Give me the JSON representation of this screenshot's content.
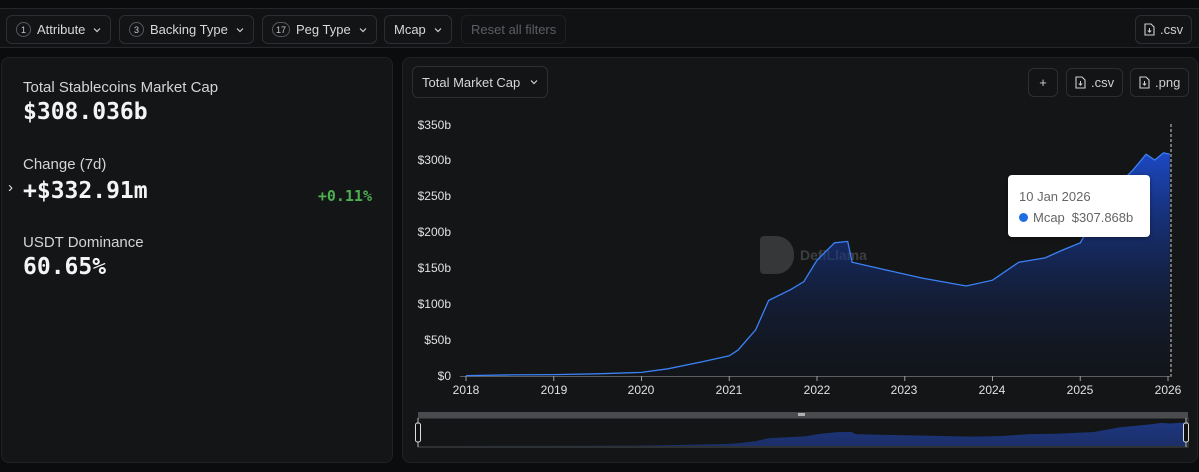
{
  "filters": {
    "items": [
      {
        "badge": "1",
        "label": "Attribute"
      },
      {
        "badge": "3",
        "label": "Backing Type"
      },
      {
        "badge": "17",
        "label": "Peg Type"
      },
      {
        "badge": "",
        "label": "Mcap"
      }
    ],
    "reset_label": "Reset all filters",
    "csv_label": ".csv"
  },
  "stats": {
    "total_label": "Total Stablecoins Market Cap",
    "total_value": "$308.036b",
    "change_label": "Change (7d)",
    "change_value": "+$332.91m",
    "change_pct": "+0.11%",
    "dominance_label": "USDT Dominance",
    "dominance_value": "60.65%",
    "expand_icon": "›"
  },
  "chart_toolbar": {
    "metric_select": "Total Market Cap",
    "add_label": "+",
    "csv_label": ".csv",
    "png_label": ".png"
  },
  "tooltip": {
    "date": "10 Jan 2026",
    "series": "Mcap",
    "value": "$307.868b"
  },
  "watermark": "DefiLlama",
  "colors": {
    "line": "#3b82f6",
    "fill_top": "#1d4ed8",
    "positive": "#4caf50",
    "tooltip_dot": "#1f6fe0"
  },
  "chart_data": {
    "type": "area",
    "title": "Total Market Cap",
    "xlabel": "",
    "ylabel": "",
    "ylim": [
      0,
      350
    ],
    "y_unit": "$b",
    "y_ticks": [
      "$0",
      "$50b",
      "$100b",
      "$150b",
      "$200b",
      "$250b",
      "$300b",
      "$350b"
    ],
    "x_ticks": [
      "2018",
      "2019",
      "2020",
      "2021",
      "2022",
      "2023",
      "2024",
      "2025",
      "2026"
    ],
    "grid": false,
    "legend": "none",
    "series": [
      {
        "name": "Mcap",
        "x": [
          2018.0,
          2018.5,
          2019.0,
          2019.5,
          2020.0,
          2020.3,
          2020.7,
          2021.0,
          2021.1,
          2021.3,
          2021.45,
          2021.7,
          2021.85,
          2022.0,
          2022.2,
          2022.35,
          2022.4,
          2022.8,
          2023.2,
          2023.7,
          2024.0,
          2024.3,
          2024.6,
          2024.8,
          2025.0,
          2025.3,
          2025.6,
          2025.75,
          2025.85,
          2025.95,
          2026.02
        ],
        "values": [
          0.5,
          1.5,
          2,
          3,
          5,
          10,
          20,
          28,
          36,
          64,
          105,
          120,
          131,
          161,
          185,
          187,
          158,
          147,
          136,
          125,
          133,
          158,
          164,
          175,
          185,
          250,
          286,
          308,
          300,
          310,
          308
        ]
      }
    ],
    "annotations": [
      {
        "type": "tooltip",
        "date": "10 Jan 2026",
        "label": "Mcap",
        "value": "$307.868b"
      }
    ]
  }
}
